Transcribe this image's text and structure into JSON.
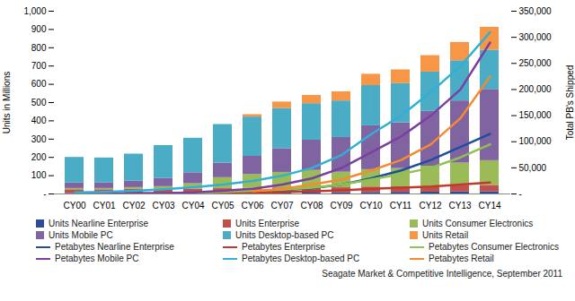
{
  "chart_data": {
    "type": "bar",
    "stacked": true,
    "legend": "bottom",
    "grid": false,
    "y_label": "Units in Millions",
    "y2_label": "Total PB's Shipped",
    "source": "Seagate Market & Competitive Intelligence, September 2011",
    "categories": [
      "CY00",
      "CY01",
      "CY02",
      "CY03",
      "CY04",
      "CY05",
      "CY06",
      "CY07",
      "CY08",
      "CY09",
      "CY10",
      "CY11",
      "CY12",
      "CY13",
      "CY14"
    ],
    "ylim": [
      0,
      1000
    ],
    "yticks": [
      {
        "value": 0,
        "label": "-"
      },
      100,
      200,
      300,
      400,
      500,
      600,
      700,
      800,
      900,
      {
        "value": 1000,
        "label": "1,000"
      }
    ],
    "y2lim": [
      0,
      350000
    ],
    "y2ticks": [
      {
        "value": 0,
        "label": "-"
      },
      {
        "value": 50000,
        "label": "50,000"
      },
      {
        "value": 100000,
        "label": "100,000"
      },
      {
        "value": 150000,
        "label": "150,000"
      },
      {
        "value": 200000,
        "label": "200,000"
      },
      {
        "value": 250000,
        "label": "250,000"
      },
      {
        "value": 300000,
        "label": "300,000"
      },
      {
        "value": 350000,
        "label": "350,000"
      }
    ],
    "series": [
      {
        "name": "Units Nearline Enterprise",
        "type": "bar",
        "color": "#2c4d9b",
        "values": [
          3,
          3,
          3,
          3,
          3,
          4,
          4,
          5,
          6,
          7,
          8,
          9,
          10,
          11,
          12
        ]
      },
      {
        "name": "Units Enterprise",
        "type": "bar",
        "color": "#c0504d",
        "values": [
          20,
          20,
          22,
          22,
          23,
          25,
          27,
          28,
          28,
          27,
          30,
          30,
          32,
          33,
          35
        ]
      },
      {
        "name": "Units Consumer Electronics",
        "type": "bar",
        "color": "#9bbb59",
        "values": [
          7,
          7,
          10,
          15,
          30,
          60,
          75,
          85,
          95,
          85,
          95,
          100,
          110,
          125,
          135
        ]
      },
      {
        "name": "Units Mobile PC",
        "type": "bar",
        "color": "#8064a2",
        "values": [
          30,
          30,
          35,
          45,
          60,
          80,
          100,
          130,
          165,
          190,
          240,
          250,
          300,
          340,
          390
        ]
      },
      {
        "name": "Units Desktop-based PC",
        "type": "bar",
        "color": "#4bacc6",
        "values": [
          140,
          137,
          148,
          180,
          189,
          211,
          215,
          220,
          200,
          200,
          220,
          215,
          215,
          220,
          215
        ]
      },
      {
        "name": "Units Retail",
        "type": "bar",
        "color": "#f79646",
        "values": [
          0,
          0,
          0,
          0,
          0,
          0,
          13,
          35,
          45,
          50,
          62,
          75,
          90,
          100,
          125
        ]
      },
      {
        "name": "Petabytes Nearline Enterprise",
        "type": "line",
        "axis": "y2",
        "color": "#1f4e9c",
        "values": [
          500,
          700,
          1000,
          1500,
          2000,
          3000,
          5000,
          7000,
          11000,
          18000,
          30000,
          45000,
          65000,
          90000,
          115000
        ]
      },
      {
        "name": "Petabytes Enterprise",
        "type": "line",
        "axis": "y2",
        "color": "#c0392b",
        "values": [
          500,
          600,
          800,
          1000,
          1500,
          2000,
          2500,
          3500,
          5000,
          7000,
          10000,
          12000,
          14000,
          18000,
          22000
        ]
      },
      {
        "name": "Petabytes Consumer Electronics",
        "type": "line",
        "axis": "y2",
        "color": "#8fc050",
        "values": [
          100,
          200,
          400,
          1000,
          2000,
          4000,
          6000,
          8000,
          12000,
          18000,
          28000,
          38000,
          50000,
          70000,
          95000
        ]
      },
      {
        "name": "Petabytes Mobile PC",
        "type": "line",
        "axis": "y2",
        "color": "#7b3fa0",
        "values": [
          300,
          500,
          800,
          1500,
          3000,
          6000,
          10000,
          18000,
          30000,
          50000,
          80000,
          110000,
          150000,
          200000,
          290000
        ]
      },
      {
        "name": "Petabytes Desktop-based PC",
        "type": "line",
        "axis": "y2",
        "color": "#31b0d5",
        "values": [
          3000,
          4000,
          6000,
          9000,
          13000,
          18000,
          25000,
          35000,
          50000,
          75000,
          115000,
          150000,
          195000,
          245000,
          310000
        ]
      },
      {
        "name": "Petabytes Retail",
        "type": "line",
        "axis": "y2",
        "color": "#f58a2e",
        "values": [
          null,
          null,
          null,
          null,
          null,
          null,
          5000,
          10000,
          18000,
          28000,
          45000,
          65000,
          95000,
          145000,
          225000
        ]
      }
    ]
  }
}
